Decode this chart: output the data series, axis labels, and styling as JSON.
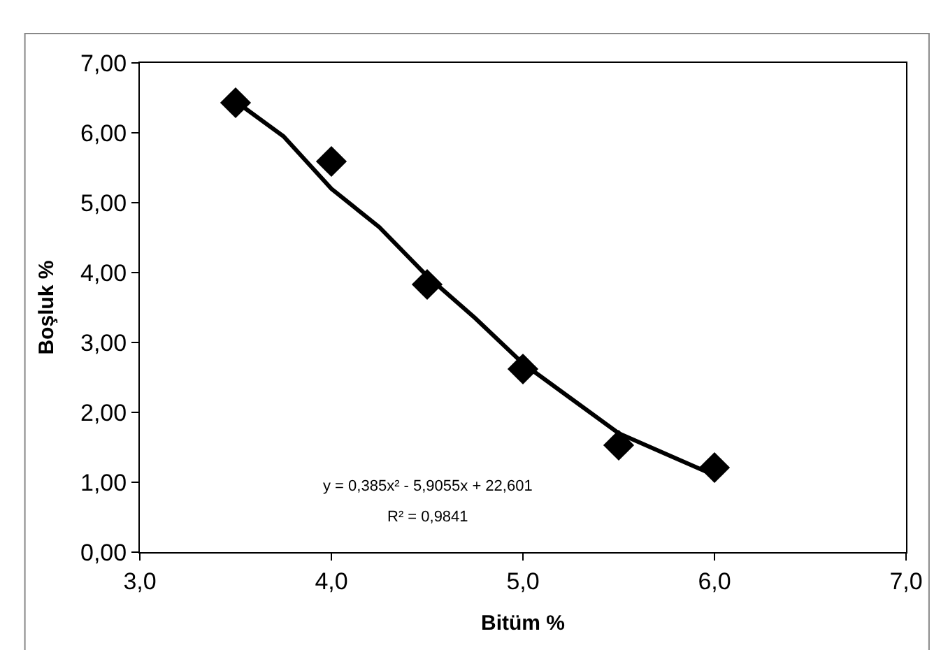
{
  "chart_data": {
    "type": "scatter",
    "xlabel": "Bitüm %",
    "ylabel": "Boşluk %",
    "xlim": [
      3,
      7
    ],
    "ylim": [
      0,
      7
    ],
    "xticks": [
      {
        "value": 3,
        "label": "3,0"
      },
      {
        "value": 4,
        "label": "4,0"
      },
      {
        "value": 5,
        "label": "5,0"
      },
      {
        "value": 6,
        "label": "6,0"
      },
      {
        "value": 7,
        "label": "7,0"
      }
    ],
    "yticks": [
      {
        "value": 0,
        "label": "0,00"
      },
      {
        "value": 1,
        "label": "1,00"
      },
      {
        "value": 2,
        "label": "2,00"
      },
      {
        "value": 3,
        "label": "3,00"
      },
      {
        "value": 4,
        "label": "4,00"
      },
      {
        "value": 5,
        "label": "5,00"
      },
      {
        "value": 6,
        "label": "6,00"
      },
      {
        "value": 7,
        "label": "7,00"
      }
    ],
    "series": [
      {
        "type": "line",
        "color": "#000000",
        "marker": "none",
        "line_style": "solid",
        "x": [
          3.5,
          3.75,
          4.0,
          4.25,
          4.5,
          4.75,
          5.0,
          5.25,
          5.5,
          5.75,
          6.0
        ],
        "values": [
          6.45,
          5.95,
          5.2,
          4.65,
          3.95,
          3.35,
          2.7,
          2.2,
          1.7,
          1.4,
          1.1
        ]
      },
      {
        "color": "#000000",
        "marker": "diamond",
        "x": [
          3.5,
          4.0,
          4.5,
          5.0,
          5.5,
          6.0
        ],
        "values": [
          6.43,
          5.59,
          3.83,
          2.62,
          1.53,
          1.21
        ]
      }
    ],
    "annotations": [
      "y = 0,385x² - 5,9055x + 22,601",
      "R² = 0,9841"
    ]
  }
}
